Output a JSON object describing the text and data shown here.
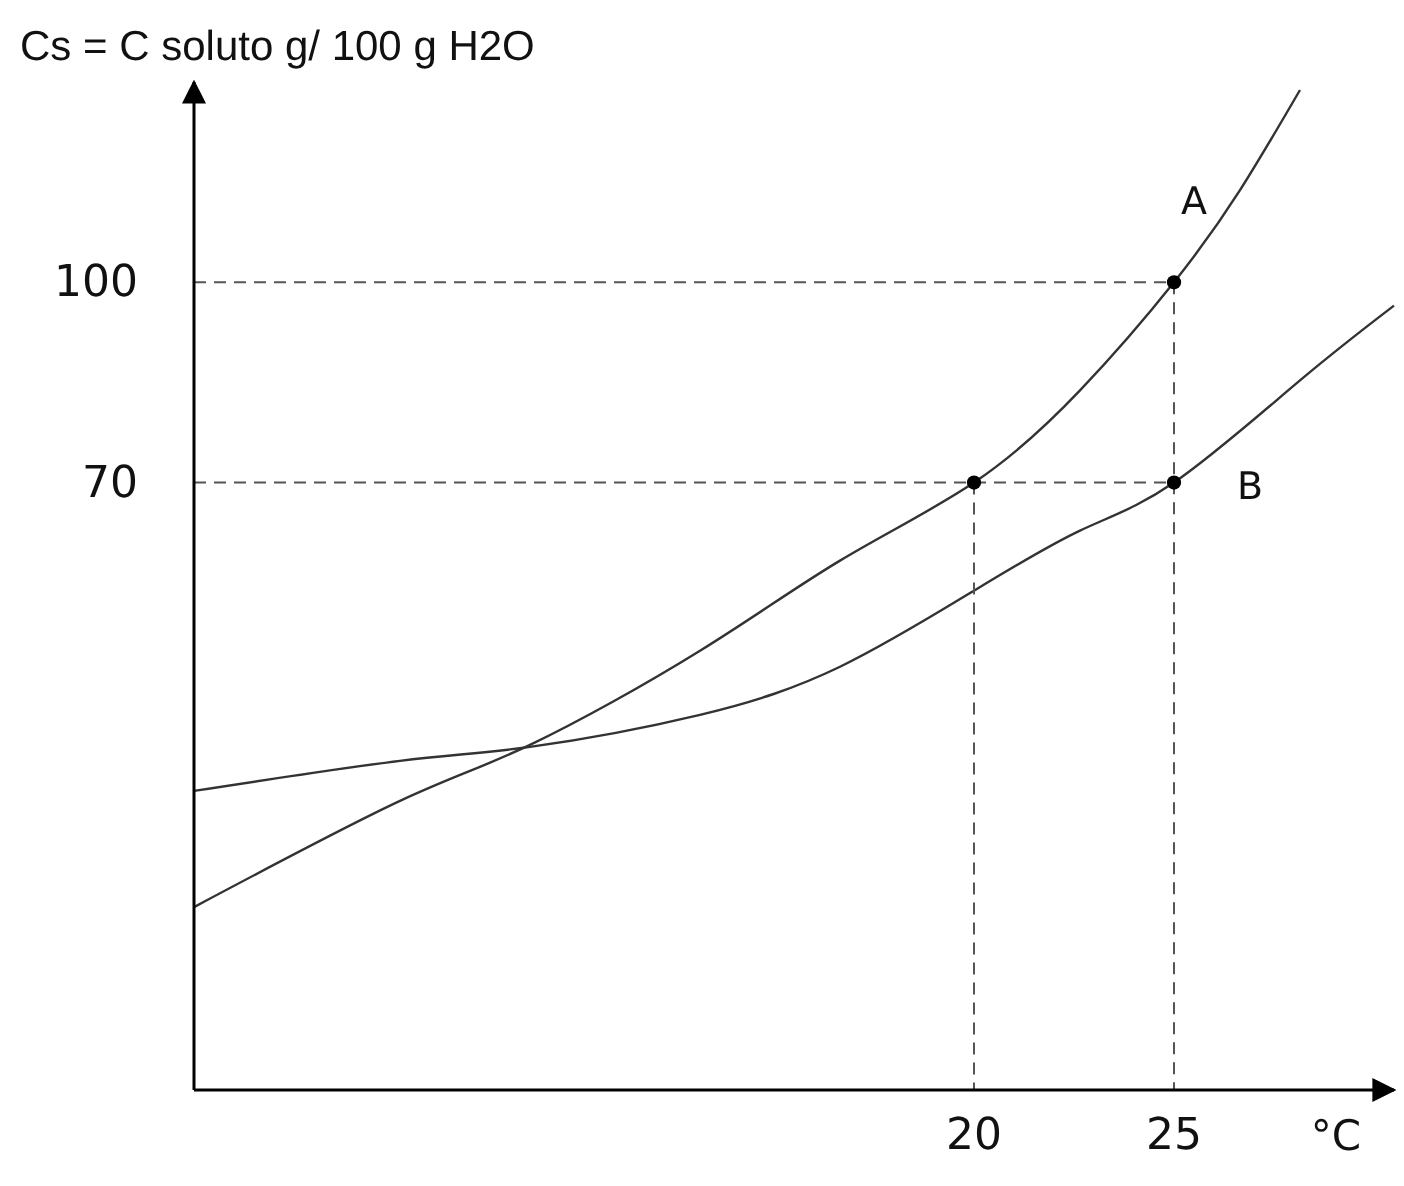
{
  "chart_data": {
    "type": "line",
    "ylabel": "Cs = C soluto g/ 100 g H2O",
    "xlabel": "°C",
    "xlim": [
      0.5,
      30.5
    ],
    "ylim": [
      -21,
      130
    ],
    "xticks": [
      20,
      25
    ],
    "yticks": [
      70,
      100
    ],
    "grid": false,
    "series": [
      {
        "name": "A",
        "color": "#333333",
        "x": [
          0.5,
          5.65,
          8.9,
          13.15,
          16.65,
          20,
          22.65,
          25,
          26.65,
          28.15
        ],
        "values": [
          6.4,
          22.3,
          30.7,
          44.8,
          58.3,
          70,
          83.8,
          100,
          113.8,
          128.8
        ]
      },
      {
        "name": "B",
        "color": "#333333",
        "x": [
          0.5,
          5.65,
          8.9,
          13.15,
          16.65,
          20,
          22.65,
          25,
          28.15,
          30.5
        ],
        "values": [
          23.8,
          28.3,
          30.4,
          35.2,
          42.4,
          53.8,
          62.8,
          70,
          85.3,
          96.5
        ]
      },
      {
        "type": "line",
        "line_style": "dashed",
        "color": "#555555",
        "x": [
          0.5,
          25,
          25
        ],
        "values": [
          100,
          100,
          -21
        ]
      },
      {
        "type": "line",
        "line_style": "dashed",
        "color": "#555555",
        "x": [
          0.5,
          20,
          20
        ],
        "values": [
          70,
          70,
          -21
        ]
      },
      {
        "type": "line",
        "line_style": "dashed",
        "color": "#555555",
        "x": [
          20,
          25
        ],
        "values": [
          70,
          70
        ]
      },
      {
        "type": "scatter",
        "marker": "circle",
        "color": "#000000",
        "x": [
          20,
          25,
          25
        ],
        "values": [
          70,
          100,
          70
        ]
      }
    ]
  }
}
